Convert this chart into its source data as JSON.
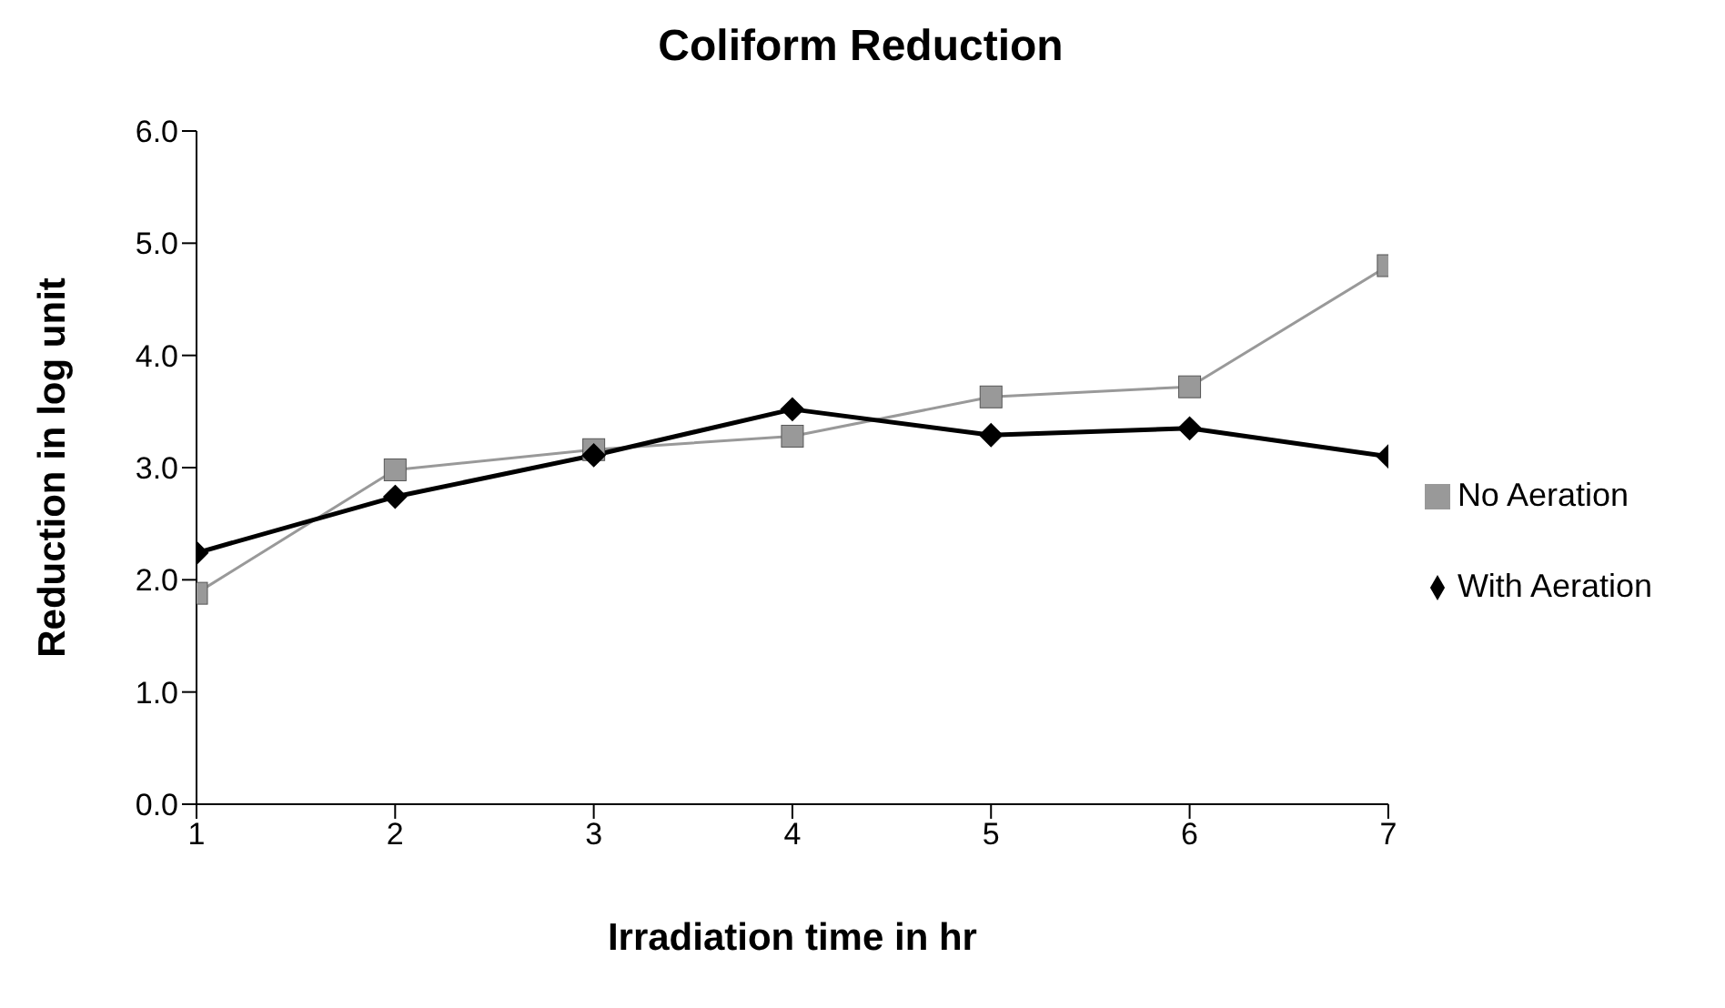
{
  "chart_data": {
    "type": "line",
    "title": "Coliform Reduction",
    "xlabel": "Irradiation time in hr",
    "ylabel": "Reduction in log unit",
    "x": [
      1,
      2,
      3,
      4,
      5,
      6,
      7
    ],
    "series": [
      {
        "name": "With Aeration",
        "color": "#000000",
        "marker": "diamond",
        "values": [
          2.24,
          2.74,
          3.11,
          3.52,
          3.29,
          3.35,
          3.1
        ]
      },
      {
        "name": "No Aeration",
        "color": "#999999",
        "marker": "square",
        "values": [
          1.88,
          2.98,
          3.16,
          3.28,
          3.63,
          3.72,
          4.8
        ]
      }
    ],
    "xlim": [
      1,
      7
    ],
    "xticks": [
      1,
      2,
      3,
      4,
      5,
      6,
      7
    ],
    "ylim": [
      0,
      6
    ],
    "yticks": [
      {
        "value": 0,
        "label": "0.0"
      },
      {
        "value": 1,
        "label": "1.0"
      },
      {
        "value": 2,
        "label": "2.0"
      },
      {
        "value": 3,
        "label": "3.0"
      },
      {
        "value": 4,
        "label": "4.0"
      },
      {
        "value": 5,
        "label": "5.0"
      },
      {
        "value": 6,
        "label": "6.0"
      }
    ],
    "grid": false,
    "legend": "right"
  }
}
